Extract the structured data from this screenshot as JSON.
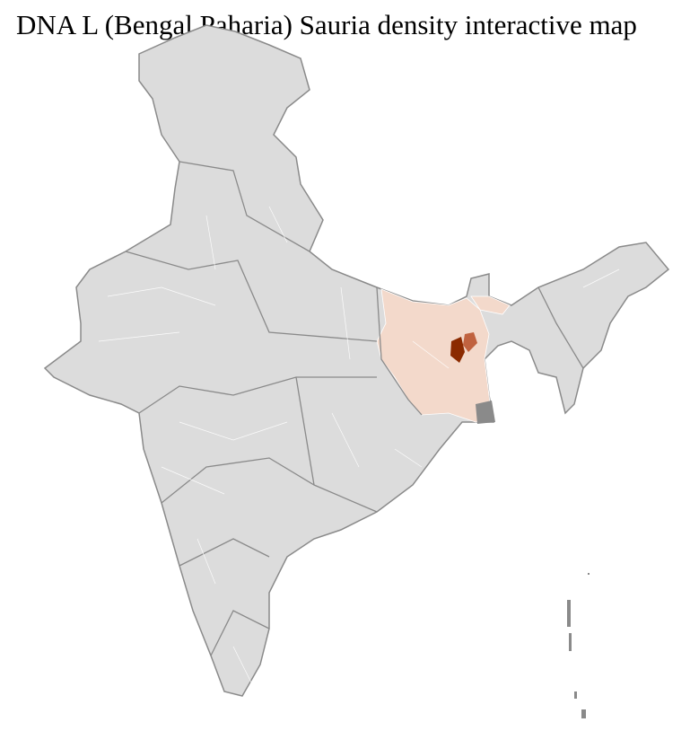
{
  "title": "DNA L (Bengal Paharia) Sauria density interactive map",
  "map": {
    "region": "India districts",
    "colors": {
      "base": "#dcdcdc",
      "district_border": "#ffffff",
      "state_border": "#8a8a8a",
      "low": "#f3d9cb",
      "medium": "#c0623f",
      "high": "#8b2a00"
    }
  }
}
